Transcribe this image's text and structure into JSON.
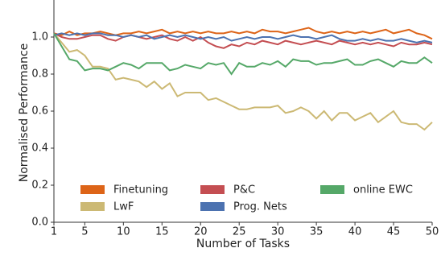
{
  "chart_data": {
    "type": "line",
    "x_label": "Number of Tasks",
    "y_label": "Normalised Performance",
    "x": [
      1,
      2,
      3,
      4,
      5,
      6,
      7,
      8,
      9,
      10,
      11,
      12,
      13,
      14,
      15,
      16,
      17,
      18,
      19,
      20,
      21,
      22,
      23,
      24,
      25,
      26,
      27,
      28,
      29,
      30,
      31,
      32,
      33,
      34,
      35,
      36,
      37,
      38,
      39,
      40,
      41,
      42,
      43,
      44,
      45,
      46,
      47,
      48,
      49,
      50
    ],
    "series": [
      {
        "name": "Finetuning",
        "color": "#dd6418",
        "values": [
          1.02,
          1.01,
          1.03,
          1.01,
          1.02,
          1.02,
          1.03,
          1.02,
          1.01,
          1.02,
          1.02,
          1.03,
          1.02,
          1.03,
          1.04,
          1.02,
          1.03,
          1.02,
          1.03,
          1.02,
          1.03,
          1.02,
          1.02,
          1.03,
          1.02,
          1.03,
          1.02,
          1.04,
          1.03,
          1.03,
          1.02,
          1.03,
          1.04,
          1.05,
          1.03,
          1.02,
          1.03,
          1.02,
          1.03,
          1.02,
          1.03,
          1.02,
          1.03,
          1.04,
          1.02,
          1.03,
          1.04,
          1.02,
          1.01,
          0.99
        ]
      },
      {
        "name": "LwF",
        "color": "#ccb974",
        "values": [
          1.02,
          0.97,
          0.92,
          0.93,
          0.9,
          0.84,
          0.84,
          0.83,
          0.77,
          0.78,
          0.77,
          0.76,
          0.73,
          0.76,
          0.72,
          0.75,
          0.68,
          0.7,
          0.7,
          0.7,
          0.66,
          0.67,
          0.65,
          0.63,
          0.61,
          0.61,
          0.62,
          0.62,
          0.62,
          0.63,
          0.59,
          0.6,
          0.62,
          0.6,
          0.56,
          0.6,
          0.55,
          0.59,
          0.59,
          0.55,
          0.57,
          0.59,
          0.54,
          0.57,
          0.6,
          0.54,
          0.53,
          0.53,
          0.5,
          0.54
        ]
      },
      {
        "name": "P&C",
        "color": "#c44e52",
        "values": [
          1.02,
          1.0,
          0.99,
          0.99,
          1.0,
          1.01,
          1.01,
          0.99,
          0.98,
          1.0,
          1.01,
          1.0,
          0.99,
          1.0,
          1.01,
          0.99,
          0.98,
          1.0,
          0.98,
          1.0,
          0.97,
          0.95,
          0.94,
          0.96,
          0.95,
          0.97,
          0.96,
          0.98,
          0.97,
          0.96,
          0.98,
          0.97,
          0.96,
          0.97,
          0.98,
          0.97,
          0.96,
          0.98,
          0.97,
          0.96,
          0.97,
          0.96,
          0.97,
          0.96,
          0.95,
          0.97,
          0.96,
          0.96,
          0.97,
          0.96
        ]
      },
      {
        "name": "Prog. Nets",
        "color": "#4c72b0",
        "values": [
          1.01,
          1.02,
          1.01,
          1.02,
          1.01,
          1.02,
          1.02,
          1.01,
          1.01,
          1.0,
          1.01,
          1.0,
          1.01,
          0.99,
          1.0,
          1.01,
          1.0,
          1.01,
          1.0,
          0.99,
          1.0,
          0.99,
          1.0,
          0.98,
          0.99,
          1.0,
          0.99,
          1.0,
          1.0,
          0.99,
          1.0,
          1.01,
          1.0,
          1.0,
          0.99,
          1.0,
          1.01,
          0.99,
          0.98,
          0.98,
          0.99,
          0.98,
          0.99,
          0.98,
          0.98,
          0.99,
          0.98,
          0.97,
          0.98,
          0.97
        ]
      },
      {
        "name": "online EWC",
        "color": "#55a868",
        "values": [
          1.02,
          0.95,
          0.88,
          0.87,
          0.82,
          0.83,
          0.83,
          0.82,
          0.84,
          0.86,
          0.85,
          0.83,
          0.86,
          0.86,
          0.86,
          0.82,
          0.83,
          0.85,
          0.84,
          0.83,
          0.86,
          0.85,
          0.86,
          0.8,
          0.86,
          0.84,
          0.84,
          0.86,
          0.85,
          0.87,
          0.84,
          0.88,
          0.87,
          0.87,
          0.85,
          0.86,
          0.86,
          0.87,
          0.88,
          0.85,
          0.85,
          0.87,
          0.88,
          0.86,
          0.84,
          0.87,
          0.86,
          0.86,
          0.89,
          0.86
        ]
      }
    ],
    "xlim": [
      1,
      50
    ],
    "xticks": [
      1,
      5,
      10,
      15,
      20,
      25,
      30,
      35,
      40,
      45,
      50
    ],
    "ylim": [
      0,
      1.2
    ],
    "yticks": [
      {
        "value": 0,
        "label": "0.0"
      },
      0.2,
      0.4,
      0.6,
      0.8,
      {
        "value": 1,
        "label": "1.0"
      }
    ],
    "grid": false
  }
}
